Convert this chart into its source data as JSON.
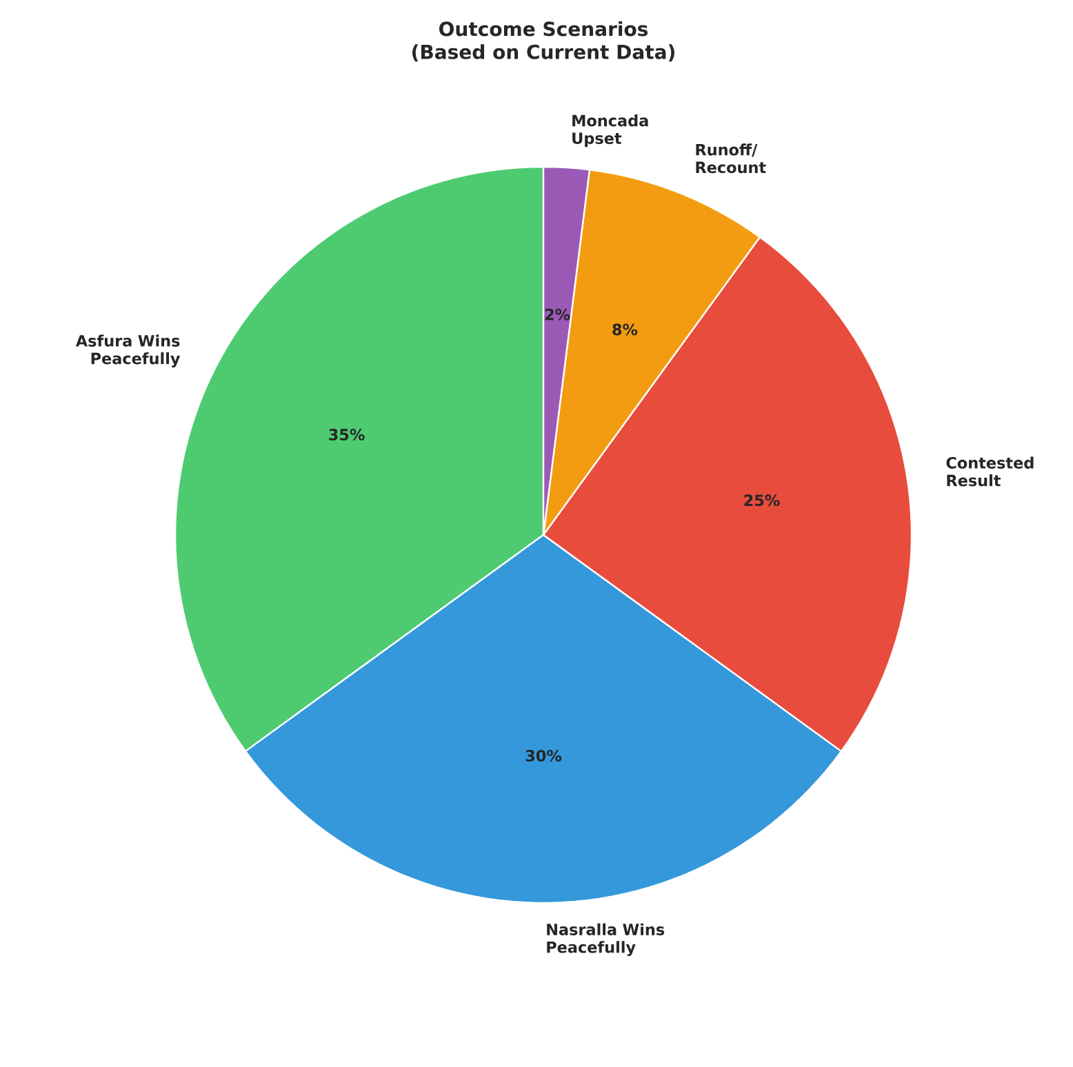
{
  "chart_data": {
    "type": "pie",
    "title": "Outcome Scenarios\n(Based on Current Data)",
    "categories": [
      "Asfura Wins Peacefully",
      "Nasralla Wins Peacefully",
      "Contested Result",
      "Runoff/ Recount",
      "Moncada Upset"
    ],
    "values": [
      35,
      30,
      25,
      8,
      2
    ],
    "colors": [
      "#4ecb71",
      "#3498db",
      "#e74c3c",
      "#f39c12",
      "#9b59b6"
    ],
    "value_labels": [
      "35%",
      "30%",
      "25%",
      "8%",
      "2%"
    ]
  }
}
